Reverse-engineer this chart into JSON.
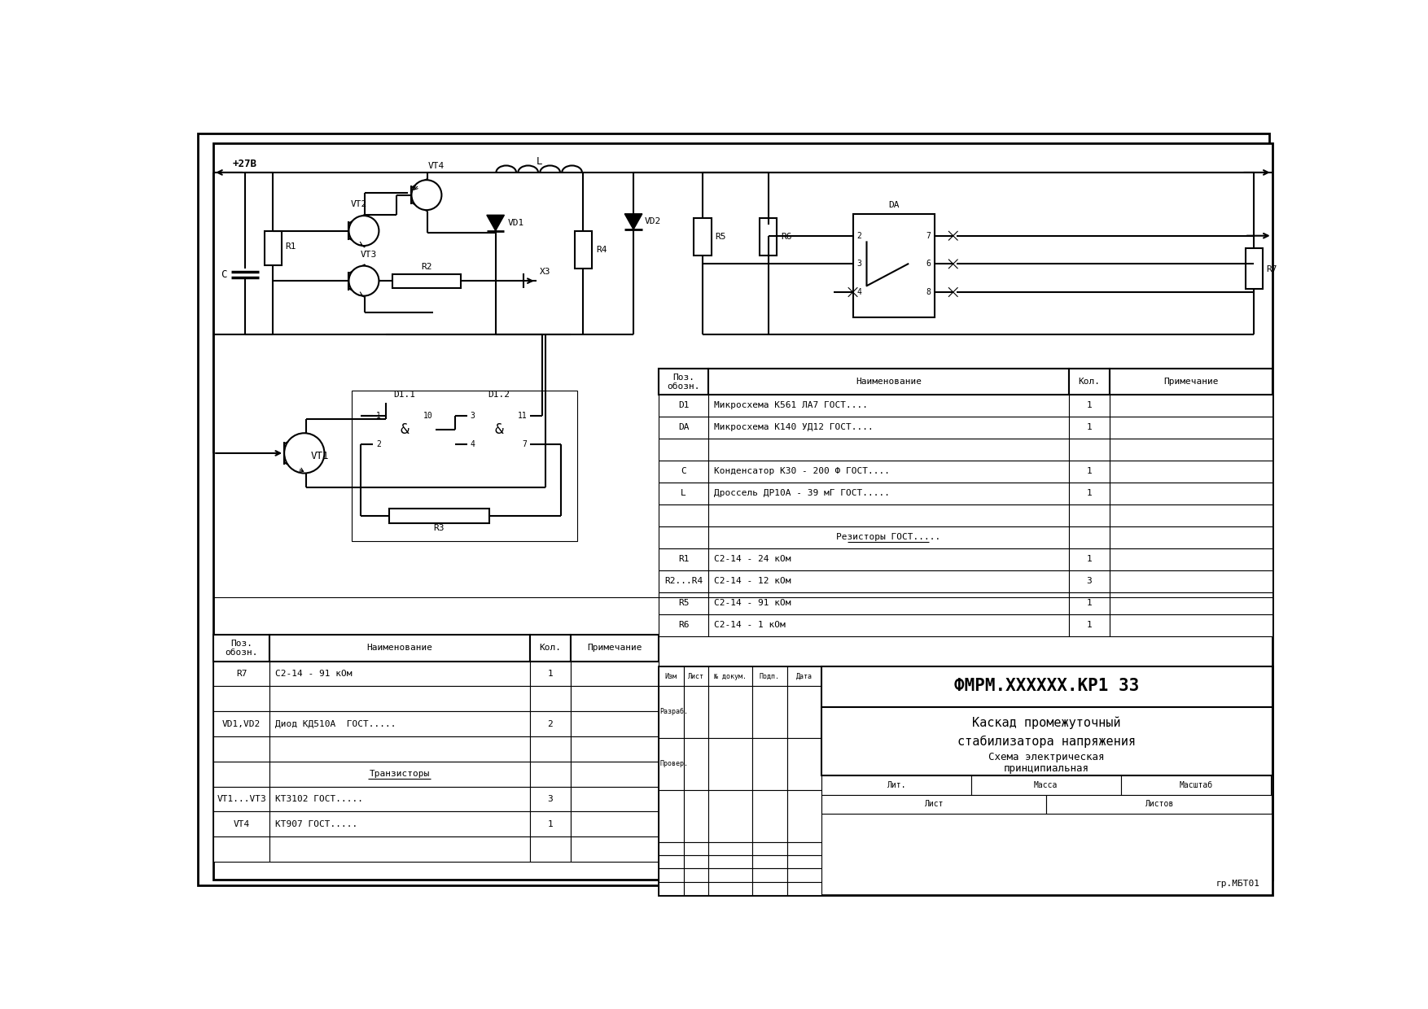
{
  "bg_color": "#ffffff",
  "line_color": "#000000",
  "line_width": 1.5,
  "thin_line": 0.8,
  "title_block": {
    "main_title": "ФМРМ.XXXXXX.КР1 ЗЗ",
    "subtitle1": "Каскад промежуточный",
    "subtitle2": "стабилизатора напряжения",
    "subtitle3": "Схема электрическая",
    "subtitle4": "принципиальная",
    "stamp": "гр.МБТ01",
    "lit": "Лит.",
    "massa": "Масса",
    "masshtab": "Масштаб",
    "list": "Лист",
    "listov": "Листов",
    "izm": "Изм",
    "list2": "Лист",
    "nomer": "№ докум.",
    "podp": "Подп.",
    "data_label": "Дата",
    "razrab": "Разраб.",
    "prover": "Провер."
  },
  "bom_right_rows": [
    [
      "D1",
      "Микросхема К561 ЛА7 ГОСТ....",
      "1",
      ""
    ],
    [
      "DA",
      "Микросхема К140 УД12 ГОСТ....",
      "1",
      ""
    ],
    [
      "",
      "",
      "",
      ""
    ],
    [
      "C",
      "Конденсатор К30 - 200 Ф ГОСТ....",
      "1",
      ""
    ],
    [
      "L",
      "Дроссель ДР10А - 39 мГ ГОСТ.....",
      "1",
      ""
    ],
    [
      "",
      "",
      "",
      ""
    ],
    [
      "",
      "Резисторы ГОСТ.....",
      "",
      ""
    ],
    [
      "R1",
      "С2-14 - 24 кОм",
      "1",
      ""
    ],
    [
      "R2...R4",
      "С2-14 - 12 кОм",
      "3",
      ""
    ],
    [
      "R5",
      "С2-14 - 91 кОм",
      "1",
      ""
    ],
    [
      "R6",
      "С2-14 - 1 кОм",
      "1",
      ""
    ]
  ],
  "bom_left_rows": [
    [
      "R7",
      "С2-14 - 91 кОм",
      "1",
      ""
    ],
    [
      "",
      "",
      "",
      ""
    ],
    [
      "VD1,VD2",
      "Диод КД510А  ГОСТ.....",
      "2",
      ""
    ],
    [
      "",
      "",
      "",
      ""
    ],
    [
      "",
      "Транзисторы",
      "",
      ""
    ],
    [
      "VT1...VT3",
      "КТ3102 ГОСТ.....",
      "3",
      ""
    ],
    [
      "VT4",
      "КТ907 ГОСТ.....",
      "1",
      ""
    ],
    [
      "",
      "",
      "",
      ""
    ]
  ]
}
